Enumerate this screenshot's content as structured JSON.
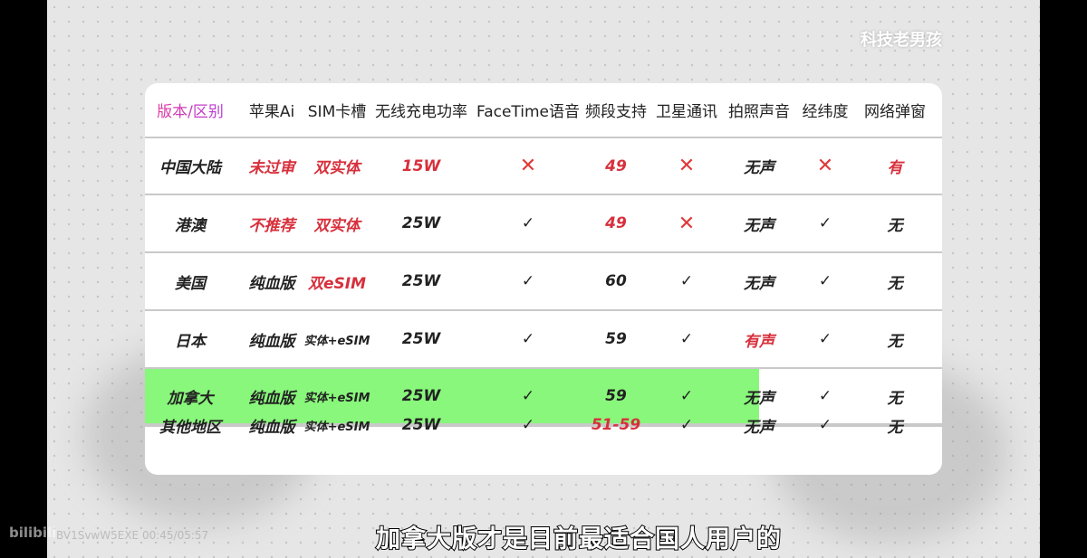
{
  "watermark": "科技老男孩",
  "subtitle": "加拿大版才是目前最适合国人用户的",
  "bilibili_logo": "bilibili",
  "video_id": "BV1SvwW5EXE 00:45/05:57",
  "colors": {
    "red": "#d7303c",
    "highlight": "#88f77b",
    "x_mark": "#e03a3a"
  },
  "table": {
    "headers": [
      "版本/区别",
      "苹果Ai",
      "SIM卡槽",
      "无线充电功率",
      "FaceTime语音",
      "频段支持",
      "卫星通讯",
      "拍照声音",
      "经纬度",
      "网络弹窗"
    ],
    "rows": [
      {
        "cells": [
          "中国大陆",
          "未过审",
          "双实体",
          "15W",
          "✕",
          "49",
          "✕",
          "无声",
          "✕",
          "有"
        ],
        "red": [
          1,
          2,
          3,
          5,
          9
        ],
        "x": [
          4,
          6,
          8
        ]
      },
      {
        "cells": [
          "港澳",
          "不推荐",
          "双实体",
          "25W",
          "✓",
          "49",
          "✕",
          "无声",
          "✓",
          "无"
        ],
        "red": [
          1,
          2,
          5
        ],
        "x": [
          6
        ]
      },
      {
        "cells": [
          "美国",
          "纯血版",
          "双eSIM",
          "25W",
          "✓",
          "60",
          "✓",
          "无声",
          "✓",
          "无"
        ],
        "red": [
          2
        ],
        "x": []
      },
      {
        "cells": [
          "日本",
          "纯血版",
          "实体+eSIM",
          "25W",
          "✓",
          "59",
          "✓",
          "有声",
          "✓",
          "无"
        ],
        "red": [
          7
        ],
        "x": []
      },
      {
        "cells": [
          "加拿大",
          "纯血版",
          "实体+eSIM",
          "25W",
          "✓",
          "59",
          "✓",
          "无声",
          "✓",
          "无"
        ],
        "red": [],
        "x": [],
        "highlight_progress": 0.77
      },
      {
        "cells": [
          "其他地区",
          "纯血版",
          "实体+eSIM",
          "25W",
          "✓",
          "51-59",
          "✓",
          "无声",
          "✓",
          "无"
        ],
        "red": [
          5
        ],
        "x": []
      }
    ]
  }
}
